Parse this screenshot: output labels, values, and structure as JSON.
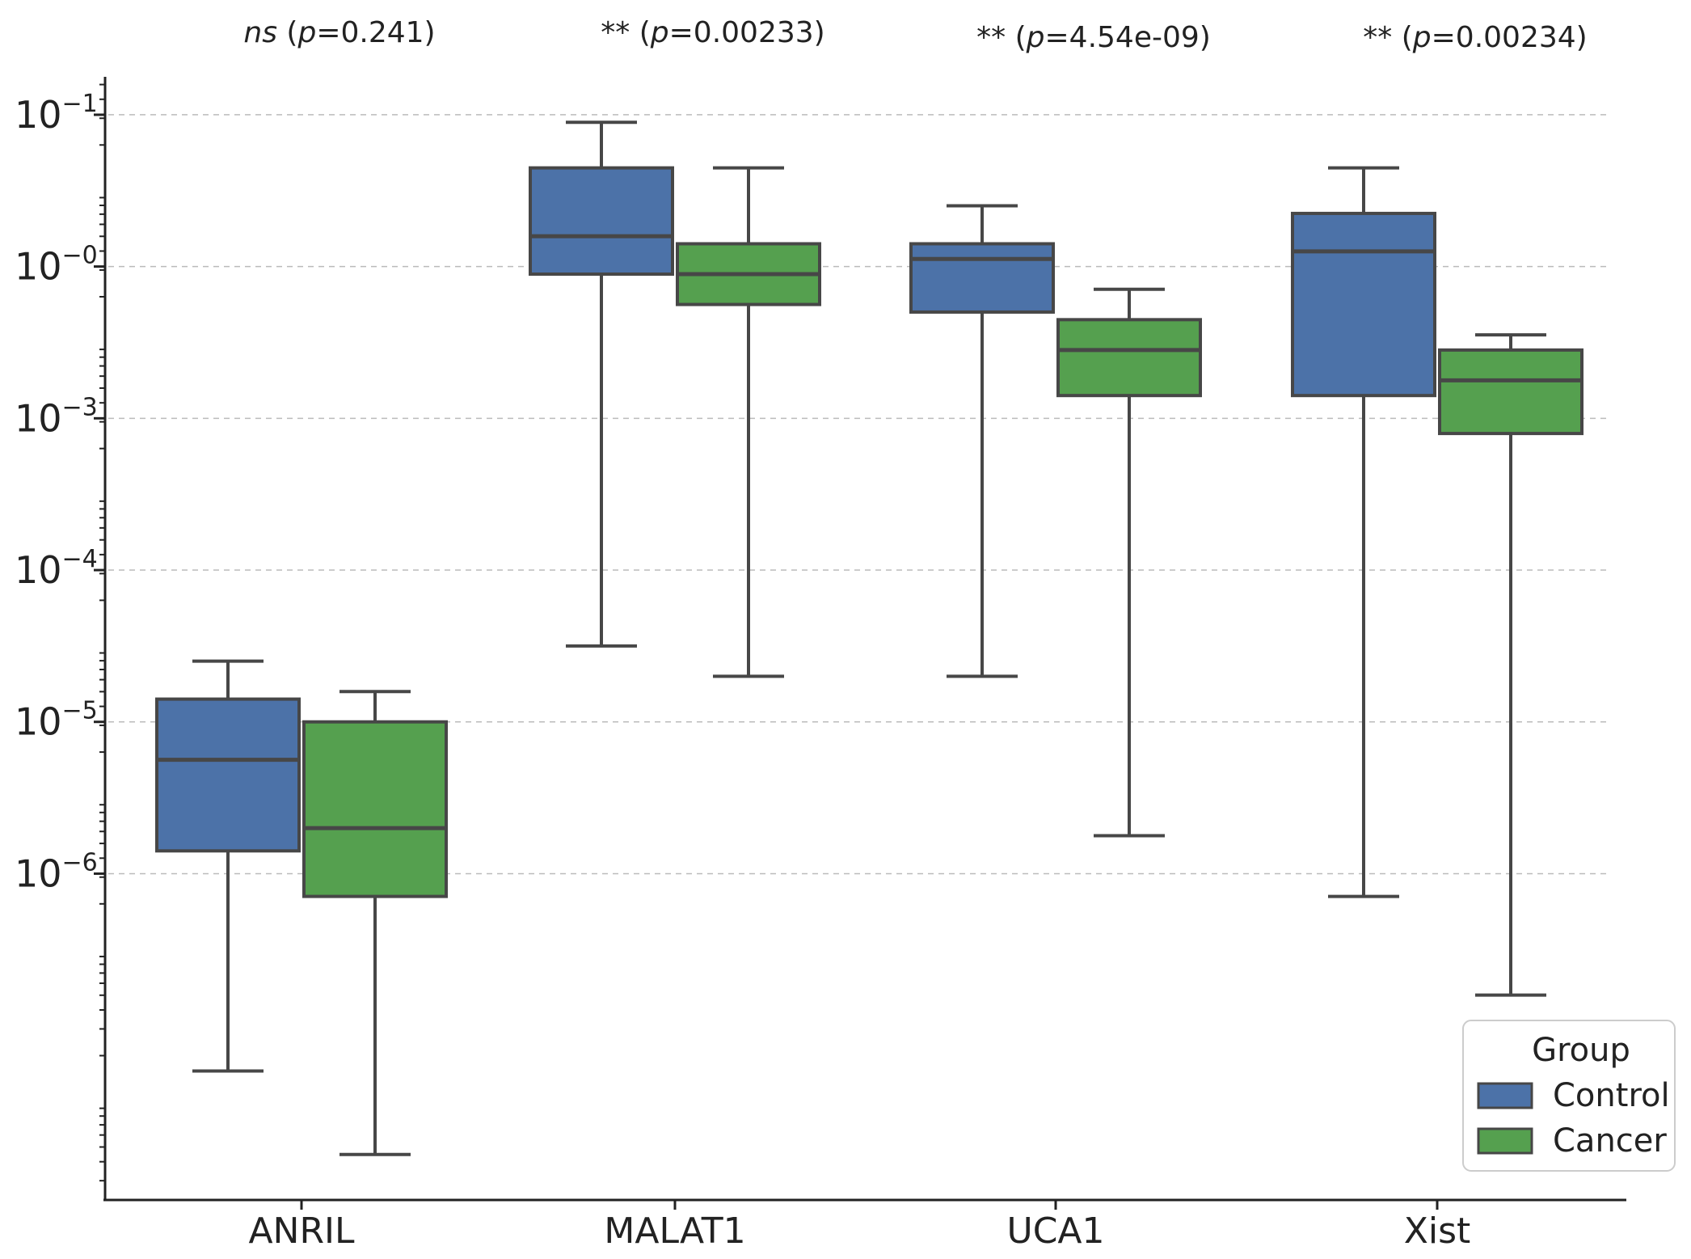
{
  "chart_data": {
    "type": "box",
    "title": "",
    "xlabel": "",
    "ylabel": "",
    "yscale": "log",
    "ylim": [
      -6.65,
      0.75
    ],
    "grid": "horizontal-dashed",
    "categories": [
      "ANRIL",
      "MALAT1",
      "UCA1",
      "Xist"
    ],
    "series": [
      {
        "name": "Control",
        "color": "#4c72a8",
        "boxes": [
          {
            "whisker_low": -5.8,
            "q1": -4.35,
            "median": -3.75,
            "q3": -3.35,
            "whisker_high": -3.1
          },
          {
            "whisker_low": -3.0,
            "q1": -0.55,
            "median": -0.3,
            "q3": 0.15,
            "whisker_high": 0.45
          },
          {
            "whisker_low": -3.2,
            "q1": -0.8,
            "median": -0.45,
            "q3": -0.35,
            "whisker_high": -0.1
          },
          {
            "whisker_low": -4.65,
            "q1": -1.35,
            "median": -0.4,
            "q3": -0.15,
            "whisker_high": 0.15
          }
        ]
      },
      {
        "name": "Cancer",
        "color": "#55a04f",
        "boxes": [
          {
            "whisker_low": -6.35,
            "q1": -4.65,
            "median": -4.2,
            "q3": -3.5,
            "whisker_high": -3.3
          },
          {
            "whisker_low": -3.2,
            "q1": -0.75,
            "median": -0.55,
            "q3": -0.35,
            "whisker_high": 0.15
          },
          {
            "whisker_low": -4.25,
            "q1": -1.35,
            "median": -1.05,
            "q3": -0.85,
            "whisker_high": -0.65
          },
          {
            "whisker_low": -5.3,
            "q1": -1.6,
            "median": -1.25,
            "q3": -1.05,
            "whisker_high": -0.95
          }
        ]
      }
    ],
    "y_ticks": [
      {
        "value": 0.5,
        "base": "10",
        "exp": "−1"
      },
      {
        "value": -0.5,
        "base": "10",
        "exp": "−0"
      },
      {
        "value": -1.5,
        "base": "10",
        "exp": "−3"
      },
      {
        "value": -2.5,
        "base": "10",
        "exp": "−4"
      },
      {
        "value": -3.5,
        "base": "10",
        "exp": "−5"
      },
      {
        "value": -4.5,
        "base": "10",
        "exp": "−6"
      }
    ],
    "gridlines": [
      0.5,
      -0.5,
      -1.5,
      -2.5,
      -3.5,
      -4.5
    ],
    "annotations": [
      {
        "category": "ANRIL",
        "stars": "",
        "ns": "ns",
        "p_label": "p",
        "p_value": "=0.241)"
      },
      {
        "category": "MALAT1",
        "stars": "**",
        "ns": "",
        "p_label": "p",
        "p_value": "=0.00233)"
      },
      {
        "category": "UCA1",
        "stars": "**",
        "ns": "",
        "p_label": "p",
        "p_value": "=4.54e-09)"
      },
      {
        "category": "Xist",
        "stars": "**",
        "ns": "",
        "p_label": "p",
        "p_value": "=0.00234)"
      }
    ],
    "legend": {
      "title": "Group",
      "position": "bottom-right",
      "entries": [
        "Control",
        "Cancer"
      ]
    }
  }
}
